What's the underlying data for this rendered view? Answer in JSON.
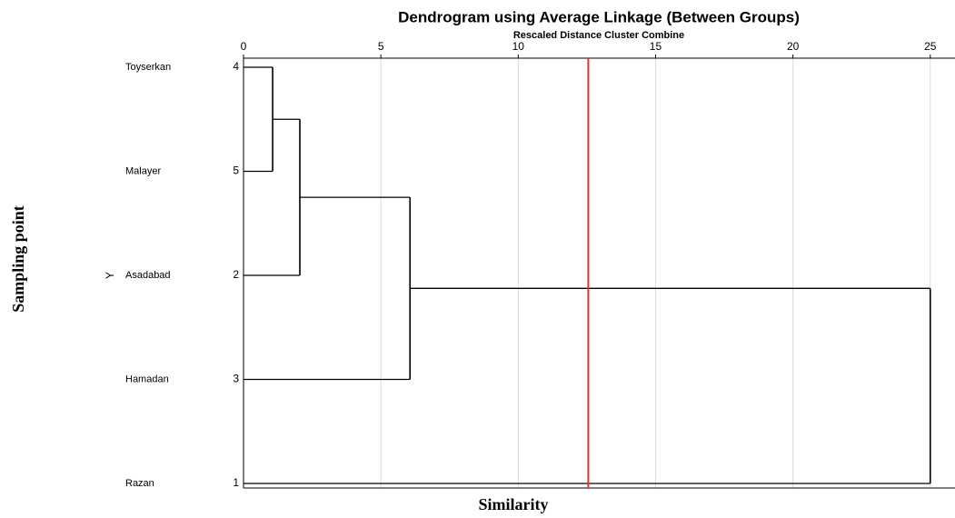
{
  "chart_data": {
    "type": "dendrogram",
    "title": "Dendrogram using Average Linkage (Between Groups)",
    "subtitle": "Rescaled Distance Cluster Combine",
    "x_label": "Similarity",
    "y_label": "Sampling point",
    "y_marker": "Y",
    "leaves": [
      {
        "label": "Toyserkan",
        "id": 4
      },
      {
        "label": "Malayer",
        "id": 5
      },
      {
        "label": "Asadabad",
        "id": 2
      },
      {
        "label": "Hamadan",
        "id": 3
      },
      {
        "label": "Razan",
        "id": 1
      }
    ],
    "merges": [
      {
        "join": [
          0,
          1
        ],
        "height": 1.06
      },
      {
        "join": [
          5,
          2
        ],
        "height": 2.05
      },
      {
        "join": [
          6,
          3
        ],
        "height": 6.06
      },
      {
        "join": [
          7,
          4
        ],
        "height": 25
      }
    ],
    "cutoff": 12.55,
    "cutoff_color": "#e8312f",
    "color": "#000000",
    "xlim": [
      0,
      25.9
    ],
    "xticks": [
      0,
      5,
      10,
      15,
      20,
      25
    ],
    "grid": true
  }
}
